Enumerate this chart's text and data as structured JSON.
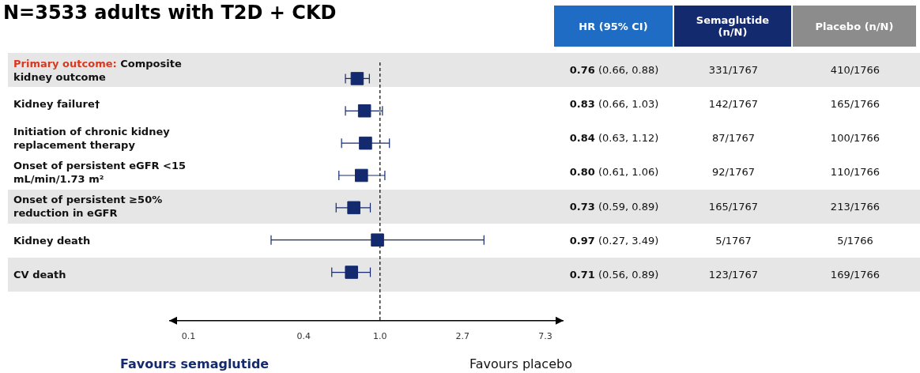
{
  "chart_data": {
    "type": "scatter",
    "title": "N=3533 adults with T2D + CKD",
    "orientation": "horizontal",
    "log": "x",
    "marker": "square",
    "categories": [
      "Primary outcome: Composite kidney outcome",
      "Kidney failure†",
      "Initiation of chronic kidney replacement therapy",
      "Onset of persistent eGFR <15 mL/min/1.73 m²",
      "Onset of persistent ≥50% reduction in eGFR",
      "Kidney death",
      "CV death"
    ],
    "series": [
      {
        "color": "#142a6e",
        "values": [
          0.76,
          0.83,
          0.84,
          0.8,
          0.73,
          0.97,
          0.71
        ],
        "errors": [
          [
            0.66,
            0.88
          ],
          [
            0.66,
            1.03
          ],
          [
            0.63,
            1.12
          ],
          [
            0.61,
            1.06
          ],
          [
            0.59,
            0.89
          ],
          [
            0.27,
            3.49
          ],
          [
            0.56,
            0.89
          ]
        ],
        "value_labels": [
          "0.76 (0.66, 0.88)",
          "0.83 (0.66, 1.03)",
          "0.84 (0.63, 1.12)",
          "0.80 (0.61, 1.06)",
          "0.73 (0.59, 0.89)",
          "0.97 (0.27, 3.49)",
          "0.71 (0.56, 0.89)"
        ]
      }
    ],
    "xlim": [
      0.08,
      9
    ],
    "xticks": [
      0.1,
      0.4,
      {
        "value": 1,
        "label": "1.0"
      },
      2.7,
      7.3
    ],
    "ref_lines": [
      {
        "axis": "x",
        "value": 1,
        "color": "#000000",
        "line_style": "dashed"
      }
    ],
    "annotations": [
      "HR (95% CI)",
      "Semaglutide (n/N)",
      "Placebo (n/N)",
      "331/1767",
      "142/1767",
      "87/1767",
      "92/1767",
      "165/1767",
      "5/1767",
      "123/1767",
      "410/1766",
      "165/1766",
      "100/1766",
      "110/1766",
      "213/1766",
      "5/1766",
      "169/1766",
      "Favours semaglutide",
      "Favours placebo"
    ]
  }
}
